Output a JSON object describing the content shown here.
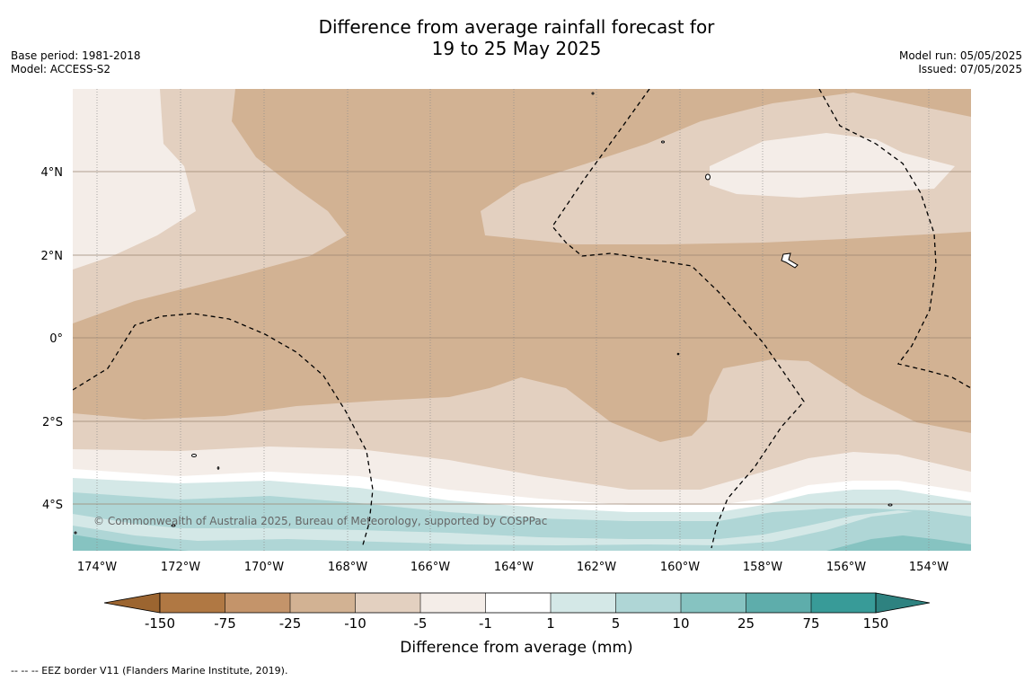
{
  "title": {
    "line1": "Difference from average rainfall forecast for",
    "line2": "19 to 25 May 2025"
  },
  "meta_left": {
    "base_period": "Base period: 1981-2018",
    "model": "Model: ACCESS-S2"
  },
  "meta_right": {
    "model_run": "Model run: 05/05/2025",
    "issued": "Issued: 07/05/2025"
  },
  "map": {
    "lon_ticks": [
      "174°W",
      "172°W",
      "170°W",
      "168°W",
      "166°W",
      "164°W",
      "162°W",
      "160°W",
      "158°W",
      "156°W",
      "154°W"
    ],
    "lat_ticks": [
      "4°N",
      "2°N",
      "0°",
      "2°S",
      "4°S"
    ],
    "copyright": "© Commonwealth of Australia 2025, Bureau of Meteorology, supported by COSPPac",
    "eez_line_color": "#000000"
  },
  "colorbar": {
    "label": "Difference from average (mm)",
    "ticks": [
      "-150",
      "-75",
      "-25",
      "-10",
      "-5",
      "-1",
      "1",
      "5",
      "10",
      "25",
      "75",
      "150"
    ],
    "colors": [
      "#9c6530",
      "#b07843",
      "#c4946a",
      "#d2b293",
      "#e3d0c0",
      "#f4ede8",
      "#ffffff",
      "#d4e8e7",
      "#afd6d6",
      "#86c3c1",
      "#5eadab",
      "#389b98",
      "#2e8280"
    ]
  },
  "footnote": "--  --  -- EEZ border V11 (Flanders Marine Institute, 2019)."
}
